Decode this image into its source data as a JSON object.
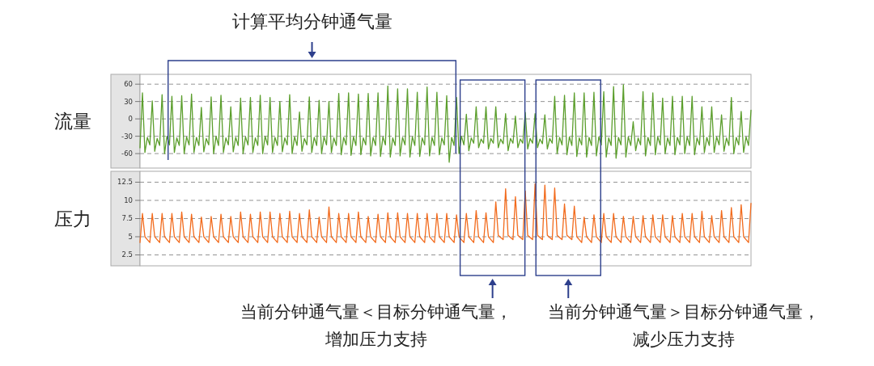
{
  "chart_data": [
    {
      "type": "line",
      "ylabel": "流量",
      "ylim": [
        -85,
        77
      ],
      "yticks": [
        60,
        30,
        0,
        -30,
        -60
      ],
      "grid": "y",
      "annotations": [
        "计算平均分钟通气量"
      ],
      "categories": [
        null,
        null,
        null,
        null,
        null,
        null,
        null,
        null,
        null,
        null,
        null,
        null,
        null,
        null,
        null,
        null,
        null,
        null,
        null,
        null,
        null,
        null,
        null,
        null,
        null,
        null,
        null,
        null,
        null,
        null,
        null,
        null,
        null,
        null,
        null,
        null,
        null,
        null,
        null,
        null,
        null,
        null,
        null,
        null,
        null,
        null,
        null,
        null,
        null,
        null,
        null,
        null,
        null,
        null,
        null,
        null,
        null,
        null,
        null,
        null,
        null,
        null,
        null,
        null,
        null,
        null,
        null,
        null,
        null,
        null,
        null,
        null,
        null,
        null,
        null,
        null,
        null,
        null,
        null,
        null,
        null,
        null,
        null,
        null,
        null,
        null,
        null,
        null,
        null,
        null,
        null,
        null,
        null,
        null,
        null,
        null,
        null,
        null,
        null,
        null,
        null,
        null,
        null,
        null,
        null,
        null,
        null,
        null,
        null,
        null,
        null,
        null,
        null,
        null,
        null,
        null,
        null,
        null,
        null,
        null,
        null,
        null,
        null,
        null,
        null,
        null,
        null,
        null,
        null,
        null,
        null,
        null,
        null,
        null,
        null,
        null,
        null,
        null,
        null,
        null,
        null,
        null,
        null,
        null,
        null,
        null,
        null,
        null,
        null,
        null,
        null,
        null,
        null,
        null,
        null,
        null,
        null,
        null,
        null,
        null,
        null,
        null,
        null,
        null,
        null,
        null,
        null,
        null,
        null,
        null,
        null,
        null,
        null,
        null,
        null,
        null,
        null,
        null,
        null,
        null,
        null,
        null,
        null,
        null,
        null,
        null,
        null,
        null,
        null,
        null,
        null,
        null,
        null,
        null,
        null,
        null,
        null,
        null,
        null,
        null,
        null,
        null,
        null,
        null,
        null,
        null,
        null,
        null,
        null,
        null,
        null,
        null,
        null,
        null,
        null,
        null,
        null,
        null,
        null,
        null,
        null,
        null,
        null,
        null,
        null,
        null,
        null,
        null,
        null,
        null,
        null,
        null,
        null,
        null,
        null,
        null,
        null,
        null,
        null,
        null,
        null,
        null,
        null,
        null,
        null,
        null,
        null,
        null,
        null,
        null
      ],
      "series": [
        {
          "color": "#5b9e2c",
          "values": [
            -50,
            45,
            -58,
            -32,
            -45,
            31,
            -56,
            -34,
            -46,
            42,
            -60,
            -30,
            -45,
            39,
            -58,
            -33,
            -46,
            40,
            -60,
            -31,
            -45,
            43,
            -58,
            -32,
            -46,
            20,
            -57,
            -34,
            -45,
            38,
            -60,
            -30,
            -46,
            41,
            -58,
            -33,
            -45,
            21,
            -57,
            -32,
            -46,
            36,
            -60,
            -31,
            -45,
            37,
            -58,
            -33,
            -46,
            41,
            -60,
            -30,
            -45,
            37,
            -58,
            -32,
            -46,
            30,
            -57,
            -33,
            -45,
            42,
            -60,
            -31,
            -46,
            12,
            -56,
            -34,
            -45,
            38,
            -58,
            -32,
            -46,
            32,
            -60,
            -31,
            -45,
            30,
            -58,
            -33,
            -46,
            44,
            -62,
            -32,
            -45,
            45,
            -63,
            -31,
            -46,
            43,
            -62,
            -33,
            -45,
            44,
            -64,
            -32,
            -46,
            45,
            -65,
            -31,
            -45,
            57,
            -66,
            -33,
            -46,
            52,
            -64,
            -32,
            -45,
            52,
            -66,
            -31,
            -46,
            46,
            -65,
            -33,
            -45,
            55,
            -64,
            -32,
            -46,
            46,
            -62,
            -33,
            -45,
            40,
            -75,
            -32,
            -46,
            37,
            -60,
            -30,
            -45,
            8,
            -55,
            -33,
            -42,
            21,
            -50,
            -35,
            -42,
            21,
            -52,
            -34,
            -42,
            21,
            -50,
            -35,
            -43,
            9,
            -55,
            -34,
            -42,
            5,
            -50,
            -35,
            -42,
            11,
            -52,
            -34,
            -42,
            9,
            -50,
            -35,
            -43,
            7,
            -52,
            -34,
            -42,
            39,
            -60,
            -32,
            -45,
            41,
            -62,
            -31,
            -46,
            45,
            -65,
            -33,
            -45,
            45,
            -66,
            -32,
            -46,
            46,
            -64,
            -31,
            -45,
            47,
            -66,
            -33,
            -46,
            56,
            -68,
            -32,
            -45,
            59,
            -66,
            -31,
            -46,
            -5,
            -55,
            -33,
            -45,
            47,
            -64,
            -32,
            -46,
            45,
            -62,
            -31,
            -45,
            36,
            -60,
            -33,
            -46,
            39,
            -62,
            -32,
            -45,
            39,
            -60,
            -31,
            -46,
            39,
            -62,
            -33,
            -45,
            21,
            -58,
            -32,
            -46,
            21,
            -58,
            -31,
            -45,
            7,
            -56,
            -33,
            -46,
            37,
            -60,
            -32,
            -45,
            13,
            -58,
            -31,
            -46,
            15
          ]
        }
      ]
    },
    {
      "type": "line",
      "ylabel": "压力",
      "ylim": [
        1,
        14
      ],
      "yticks": [
        12.5,
        10,
        7.5,
        5,
        2.5
      ],
      "grid": "y",
      "annotations": [
        "当前分钟通气量＜目标分钟通气量，",
        "增加压力支持",
        "当前分钟通气量＞目标分钟通气量，",
        "减少压力支持"
      ],
      "categories": [
        null,
        null,
        null,
        null,
        null,
        null,
        null,
        null,
        null,
        null,
        null,
        null,
        null,
        null,
        null,
        null,
        null,
        null,
        null,
        null,
        null,
        null,
        null,
        null,
        null,
        null,
        null,
        null,
        null,
        null,
        null,
        null,
        null,
        null,
        null,
        null,
        null,
        null,
        null,
        null,
        null,
        null,
        null,
        null,
        null,
        null,
        null,
        null,
        null,
        null,
        null,
        null,
        null,
        null,
        null,
        null,
        null,
        null,
        null,
        null,
        null,
        null,
        null,
        null,
        null,
        null,
        null,
        null,
        null,
        null,
        null,
        null,
        null,
        null,
        null,
        null,
        null,
        null,
        null,
        null,
        null,
        null,
        null,
        null,
        null,
        null,
        null,
        null,
        null,
        null,
        null,
        null,
        null,
        null,
        null,
        null,
        null,
        null,
        null,
        null,
        null,
        null,
        null,
        null,
        null,
        null,
        null,
        null,
        null,
        null,
        null,
        null,
        null,
        null,
        null,
        null,
        null,
        null,
        null,
        null,
        null,
        null,
        null,
        null,
        null,
        null,
        null,
        null,
        null,
        null,
        null,
        null,
        null,
        null,
        null,
        null,
        null,
        null,
        null,
        null,
        null,
        null,
        null,
        null,
        null,
        null,
        null,
        null,
        null,
        null,
        null,
        null,
        null,
        null,
        null,
        null,
        null,
        null,
        null,
        null,
        null,
        null,
        null,
        null,
        null,
        null,
        null,
        null,
        null,
        null,
        null,
        null,
        null,
        null,
        null,
        null,
        null,
        null,
        null,
        null,
        null,
        null,
        null,
        null,
        null,
        null,
        null,
        null,
        null,
        null,
        null,
        null,
        null,
        null,
        null,
        null,
        null,
        null,
        null,
        null,
        null,
        null,
        null,
        null,
        null,
        null,
        null,
        null,
        null,
        null,
        null,
        null,
        null,
        null,
        null,
        null,
        null,
        null,
        null,
        null,
        null,
        null,
        null,
        null,
        null,
        null,
        null,
        null,
        null,
        null,
        null,
        null,
        null,
        null,
        null,
        null,
        null,
        null,
        null,
        null,
        null,
        null,
        null,
        null,
        null,
        null,
        null,
        null,
        null,
        null
      ],
      "series": [
        {
          "color": "#f26b1d",
          "values": [
            4.2,
            8.2,
            5,
            4.6,
            4.2,
            8.2,
            5,
            4.6,
            4.2,
            8.2,
            5,
            4.6,
            4.2,
            8.2,
            5,
            4.6,
            4.2,
            8.4,
            5,
            4.6,
            4.2,
            8.1,
            5,
            4.6,
            4.2,
            7.7,
            5,
            4.6,
            4.2,
            7.8,
            5,
            4.6,
            4.2,
            8.1,
            5,
            4.6,
            4.2,
            7.8,
            5,
            4.6,
            4.2,
            8.4,
            5,
            4.6,
            4.2,
            8.1,
            5,
            4.6,
            4.2,
            8.4,
            5,
            4.6,
            4.2,
            8.4,
            5,
            4.6,
            4.2,
            8.2,
            5,
            4.6,
            4.2,
            8.5,
            5,
            4.6,
            4.2,
            8.2,
            5,
            4.6,
            4.2,
            8.7,
            5,
            4.6,
            4.2,
            7.7,
            5,
            4.6,
            4.2,
            9.1,
            5,
            4.6,
            4.2,
            8.2,
            5,
            4.6,
            4.2,
            8.2,
            5,
            4.6,
            4.2,
            8.4,
            5,
            4.6,
            4.2,
            7.8,
            5,
            4.6,
            4.2,
            8.1,
            5,
            4.6,
            4.2,
            8.3,
            5,
            4.6,
            4.2,
            8.3,
            5,
            4.6,
            4.2,
            8.2,
            5,
            4.6,
            4.2,
            8.2,
            5,
            4.6,
            4.2,
            8.2,
            5,
            4.6,
            4.2,
            8.2,
            5,
            4.6,
            4.2,
            8.2,
            5,
            4.6,
            4.2,
            8,
            5,
            4.6,
            4.2,
            8.2,
            5,
            4.6,
            4.2,
            8.6,
            5,
            4.6,
            4.2,
            8.3,
            5,
            4.6,
            4.2,
            9.8,
            5.2,
            4.9,
            4.6,
            11.6,
            5.2,
            4.9,
            4.6,
            10.5,
            5.2,
            4.9,
            4.6,
            11.3,
            5.2,
            4.9,
            4.6,
            12.3,
            5.2,
            4.9,
            4.6,
            12.1,
            5.2,
            4.9,
            4.6,
            11.7,
            5.2,
            4.9,
            4.6,
            9.5,
            5.2,
            4.9,
            4.6,
            9.2,
            5,
            4.6,
            4.2,
            7.7,
            5,
            4.6,
            4.2,
            8,
            5,
            4.6,
            4.2,
            8.2,
            5,
            4.6,
            4.2,
            8.2,
            5,
            4.6,
            4.2,
            7.8,
            5,
            4.6,
            4.2,
            7.8,
            5,
            4.6,
            4.2,
            7.9,
            5,
            4.6,
            4.2,
            8,
            5,
            4.6,
            4.2,
            8,
            5,
            4.6,
            4.2,
            7.9,
            5,
            4.6,
            4.2,
            8.2,
            5,
            4.6,
            4.2,
            8.2,
            5,
            4.6,
            4.2,
            8.5,
            5,
            4.6,
            4.2,
            7.9,
            5,
            4.6,
            4.2,
            8.6,
            5,
            4.6,
            4.2,
            9,
            5,
            4.6,
            4.2,
            9.4,
            5,
            4.6,
            4.2,
            9.6
          ]
        }
      ]
    }
  ]
}
